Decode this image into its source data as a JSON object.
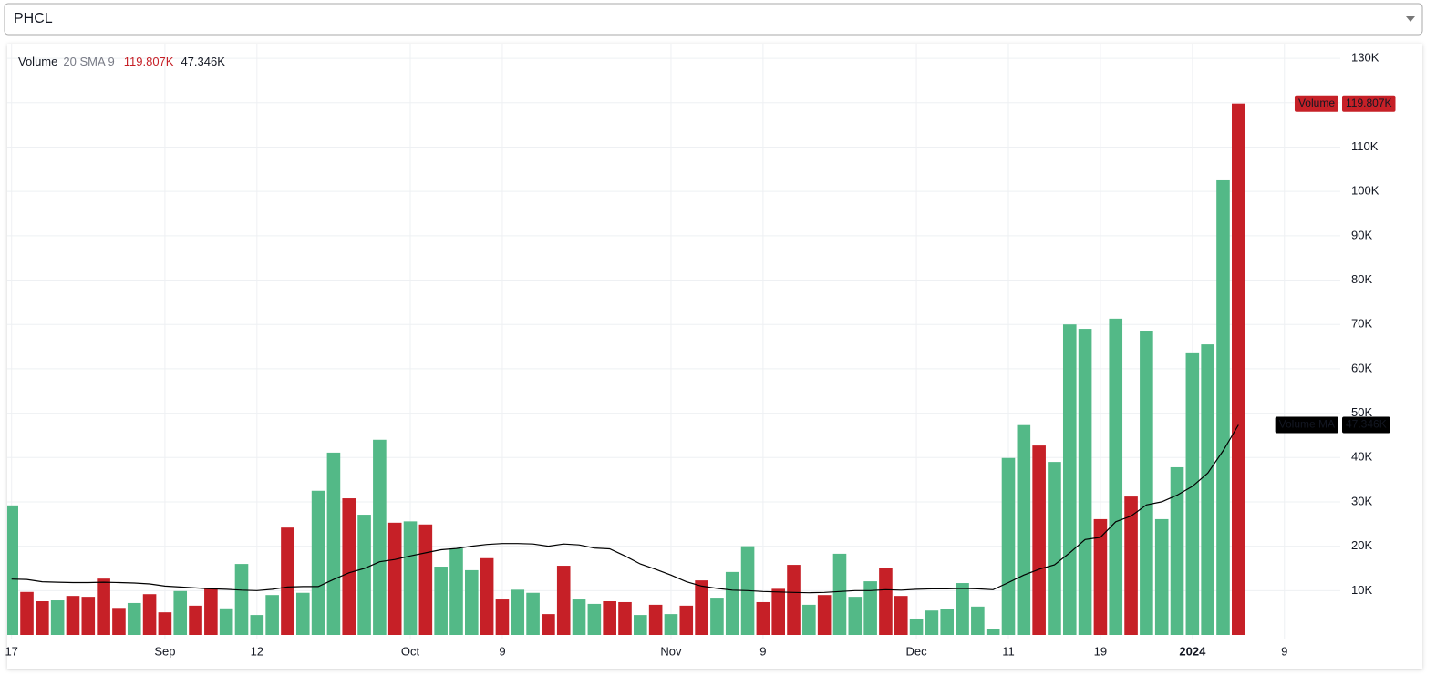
{
  "header": {
    "symbol": "PHCL"
  },
  "chart_data": {
    "type": "bar",
    "legend": {
      "title": "Volume",
      "params": "20 SMA 9"
    },
    "categories": [
      "17",
      null,
      null,
      null,
      null,
      null,
      null,
      null,
      null,
      null,
      "Sep",
      null,
      null,
      null,
      null,
      null,
      "12",
      null,
      null,
      null,
      null,
      null,
      null,
      null,
      null,
      null,
      "Oct",
      null,
      null,
      null,
      null,
      null,
      "9",
      null,
      null,
      null,
      null,
      null,
      null,
      null,
      null,
      null,
      null,
      "Nov",
      null,
      null,
      null,
      null,
      null,
      "9",
      null,
      null,
      null,
      null,
      null,
      null,
      null,
      null,
      null,
      "Dec",
      null,
      null,
      null,
      null,
      null,
      "11",
      null,
      null,
      null,
      null,
      null,
      "19",
      null,
      null,
      null,
      null,
      null,
      "2024",
      null,
      null,
      null,
      null,
      null,
      "9"
    ],
    "series": [
      {
        "name": "Volume",
        "type": "bar",
        "color": "#c62027",
        "values": [
          29.2,
          9.7,
          7.6,
          7.8,
          8.8,
          8.6,
          12.7,
          6.1,
          7.2,
          9.2,
          5.1,
          9.9,
          6.6,
          10.5,
          6.0,
          16.0,
          4.5,
          9.0,
          24.2,
          9.5,
          32.5,
          41.1,
          30.8,
          27.1,
          44.0,
          25.3,
          25.6,
          24.9,
          15.4,
          19.5,
          14.6,
          17.3,
          8.0,
          10.2,
          9.5,
          4.7,
          15.6,
          8.0,
          7.0,
          7.6,
          7.4,
          4.5,
          6.8,
          4.7,
          6.6,
          12.3,
          8.2,
          14.2,
          20.0,
          7.4,
          10.4,
          15.8,
          6.8,
          9.0,
          18.3,
          8.6,
          12.1,
          15.0,
          8.8,
          3.7,
          5.5,
          5.8,
          11.7,
          6.4,
          1.4,
          39.9,
          47.3,
          42.7,
          39.0,
          70.0,
          69.0,
          26.1,
          71.3,
          31.2,
          68.6,
          26.1,
          37.8,
          63.7,
          65.5,
          102.5,
          119.807,
          null,
          null,
          null
        ],
        "colors": [
          "#53b987",
          "#c62027",
          "#c62027",
          "#53b987",
          "#c62027",
          "#c62027",
          "#c62027",
          "#c62027",
          "#53b987",
          "#c62027",
          "#c62027",
          "#53b987",
          "#c62027",
          "#c62027",
          "#53b987",
          "#53b987",
          "#53b987",
          "#53b987",
          "#c62027",
          "#53b987",
          "#53b987",
          "#53b987",
          "#c62027",
          "#53b987",
          "#53b987",
          "#c62027",
          "#53b987",
          "#c62027",
          "#53b987",
          "#53b987",
          "#53b987",
          "#c62027",
          "#c62027",
          "#53b987",
          "#53b987",
          "#c62027",
          "#c62027",
          "#53b987",
          "#53b987",
          "#c62027",
          "#c62027",
          "#53b987",
          "#c62027",
          "#53b987",
          "#c62027",
          "#c62027",
          "#53b987",
          "#53b987",
          "#53b987",
          "#c62027",
          "#c62027",
          "#c62027",
          "#53b987",
          "#c62027",
          "#53b987",
          "#53b987",
          "#53b987",
          "#c62027",
          "#c62027",
          "#53b987",
          "#53b987",
          "#53b987",
          "#53b987",
          "#53b987",
          "#53b987",
          "#53b987",
          "#53b987",
          "#c62027",
          "#53b987",
          "#53b987",
          "#53b987",
          "#c62027",
          "#53b987",
          "#c62027",
          "#53b987",
          "#53b987",
          "#53b987",
          "#53b987",
          "#53b987",
          "#53b987",
          "#c62027",
          null,
          null,
          null
        ],
        "value_labels": [
          null,
          null,
          null,
          null,
          null,
          null,
          null,
          null,
          null,
          null,
          null,
          null,
          null,
          null,
          null,
          null,
          null,
          null,
          null,
          null,
          null,
          null,
          null,
          null,
          null,
          null,
          null,
          null,
          null,
          null,
          null,
          null,
          null,
          null,
          null,
          null,
          null,
          null,
          null,
          null,
          null,
          null,
          null,
          null,
          null,
          null,
          null,
          null,
          null,
          null,
          null,
          null,
          null,
          null,
          null,
          null,
          null,
          null,
          null,
          null,
          null,
          null,
          null,
          null,
          null,
          null,
          null,
          null,
          null,
          null,
          null,
          null,
          null,
          null,
          null,
          null,
          null,
          null,
          null,
          null,
          "119.807K",
          null,
          null,
          null
        ]
      },
      {
        "name": "Volume MA",
        "type": "line",
        "color": "#000000",
        "values": [
          12.6,
          12.5,
          12.0,
          11.9,
          11.8,
          11.8,
          11.9,
          11.8,
          11.7,
          11.5,
          11.0,
          10.8,
          10.6,
          10.4,
          10.3,
          10.1,
          10.0,
          10.3,
          10.8,
          10.9,
          10.9,
          12.5,
          14.0,
          15.0,
          16.5,
          17.0,
          17.8,
          18.5,
          19.2,
          19.5,
          20.0,
          20.4,
          20.6,
          20.6,
          20.5,
          20.0,
          20.5,
          20.3,
          19.6,
          19.4,
          17.8,
          16.0,
          14.8,
          13.5,
          12.0,
          11.0,
          10.5,
          10.1,
          10.0,
          9.8,
          9.7,
          9.6,
          9.5,
          9.6,
          9.8,
          10.0,
          10.0,
          10.2,
          10.1,
          10.3,
          10.4,
          10.4,
          10.5,
          10.4,
          10.2,
          11.8,
          13.5,
          14.8,
          15.8,
          18.5,
          21.5,
          22.0,
          25.5,
          26.8,
          29.3,
          30.0,
          31.5,
          33.5,
          36.5,
          41.5,
          47.346,
          null,
          null,
          null
        ],
        "value_labels": [
          null,
          null,
          null,
          null,
          null,
          null,
          null,
          null,
          null,
          null,
          null,
          null,
          null,
          null,
          null,
          null,
          null,
          null,
          null,
          null,
          null,
          null,
          null,
          null,
          null,
          null,
          null,
          null,
          null,
          null,
          null,
          null,
          null,
          null,
          null,
          null,
          null,
          null,
          null,
          null,
          null,
          null,
          null,
          null,
          null,
          null,
          null,
          null,
          null,
          null,
          null,
          null,
          null,
          null,
          null,
          null,
          null,
          null,
          null,
          null,
          null,
          null,
          null,
          null,
          null,
          null,
          null,
          null,
          null,
          null,
          null,
          null,
          null,
          null,
          null,
          null,
          null,
          null,
          null,
          null,
          "47.346K",
          null,
          null,
          null
        ]
      }
    ],
    "ylim": [
      0,
      133.3
    ],
    "yticks": [
      {
        "value": 10,
        "label": "10K"
      },
      {
        "value": 20,
        "label": "20K"
      },
      {
        "value": 30,
        "label": "30K"
      },
      {
        "value": 40,
        "label": "40K"
      },
      {
        "value": 50,
        "label": "50K"
      },
      {
        "value": 60,
        "label": "60K"
      },
      {
        "value": 70,
        "label": "70K"
      },
      {
        "value": 80,
        "label": "80K"
      },
      {
        "value": 90,
        "label": "90K"
      },
      {
        "value": 100,
        "label": "100K"
      },
      {
        "value": 110,
        "label": "110K"
      },
      {
        "value": 120,
        "label": "120K"
      },
      {
        "value": 130,
        "label": "130K"
      }
    ],
    "grid": true
  }
}
